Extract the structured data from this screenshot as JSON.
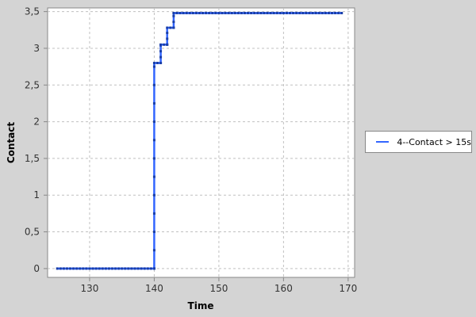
{
  "chart_data": {
    "type": "line",
    "step": true,
    "xlabel": "Time",
    "ylabel": "Contact",
    "xlim": [
      123.5,
      171
    ],
    "ylim": [
      -0.12,
      3.55
    ],
    "x_ticks": [
      130,
      140,
      150,
      160,
      170
    ],
    "y_ticks": [
      0,
      0.5,
      1,
      1.5,
      2,
      2.5,
      3,
      3.5
    ],
    "y_tick_labels": [
      "0",
      "0,5",
      "1",
      "1,5",
      "2",
      "2,5",
      "3",
      "3,5"
    ],
    "grid": true,
    "legend_position": "right",
    "series": [
      {
        "name": "4--Contact > 15s",
        "color": "#3366ff",
        "points": [
          [
            125,
            0
          ],
          [
            140,
            0
          ],
          [
            140,
            2.8
          ],
          [
            141,
            2.8
          ],
          [
            141,
            3.05
          ],
          [
            142,
            3.05
          ],
          [
            142,
            3.28
          ],
          [
            143,
            3.28
          ],
          [
            143,
            3.48
          ],
          [
            169,
            3.48
          ]
        ]
      }
    ]
  }
}
